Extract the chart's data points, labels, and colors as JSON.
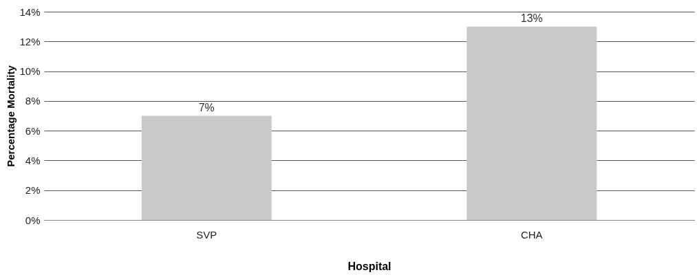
{
  "chart_data": {
    "type": "bar",
    "xlabel": "Hospital",
    "ylabel": "Percentage Mortality",
    "categories": [
      "SVP",
      "CHA"
    ],
    "values": [
      7,
      13
    ],
    "value_labels": [
      "7%",
      "13%"
    ],
    "color": "#c9c9c9",
    "ylim": [
      0,
      14
    ],
    "yticks": [
      {
        "value": 0,
        "label": "0%"
      },
      {
        "value": 2,
        "label": "2%"
      },
      {
        "value": 4,
        "label": "4%"
      },
      {
        "value": 6,
        "label": "6%"
      },
      {
        "value": 8,
        "label": "8%"
      },
      {
        "value": 10,
        "label": "10%"
      },
      {
        "value": 12,
        "label": "12%"
      },
      {
        "value": 14,
        "label": "14%"
      }
    ],
    "grid": "y"
  }
}
